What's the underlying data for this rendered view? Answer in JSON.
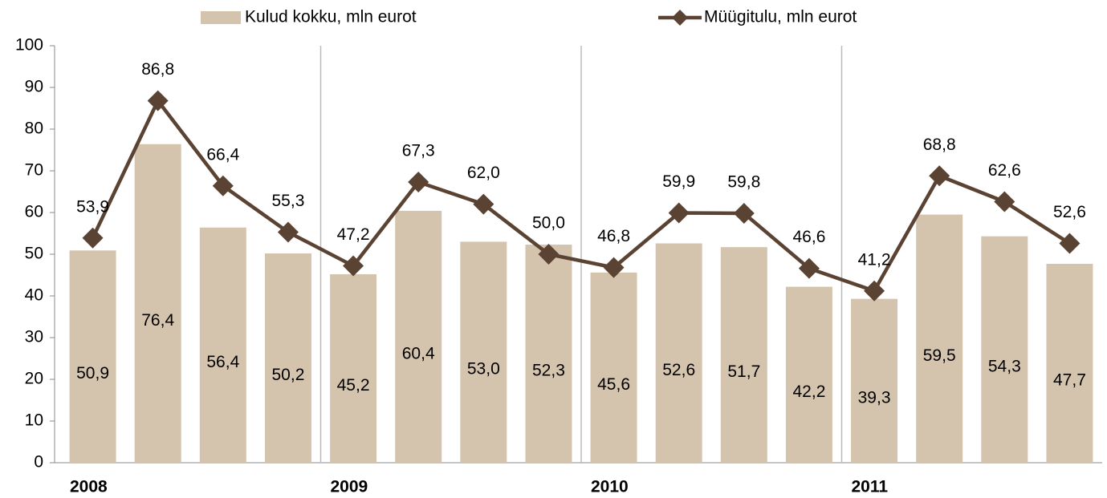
{
  "chart_data": {
    "type": "combo",
    "categories": [
      "2008",
      null,
      null,
      null,
      "2009",
      null,
      null,
      null,
      "2010",
      null,
      null,
      null,
      "2011",
      null,
      null,
      null
    ],
    "series": [
      {
        "name": "Kulud kokku, mln eurot",
        "type": "bar",
        "color": "#d5c4ad",
        "values": [
          50.9,
          76.4,
          56.4,
          50.2,
          45.2,
          60.4,
          53.0,
          52.3,
          45.6,
          52.6,
          51.7,
          42.2,
          39.3,
          59.5,
          54.3,
          47.7
        ],
        "value_labels": [
          "50,9",
          "76,4",
          "56,4",
          "50,2",
          "45,2",
          "60,4",
          "53,0",
          "52,3",
          "45,6",
          "52,6",
          "51,7",
          "42,2",
          "39,3",
          "59,5",
          "54,3",
          "47,7"
        ]
      },
      {
        "name": "Müügitulu, mln eurot",
        "type": "line",
        "color": "#5b4333",
        "values": [
          53.9,
          86.8,
          66.4,
          55.3,
          47.2,
          67.3,
          62.0,
          50.0,
          46.8,
          59.9,
          59.8,
          46.6,
          41.2,
          68.8,
          62.6,
          52.6
        ],
        "value_labels": [
          "53,9",
          "86,8",
          "66,4",
          "55,3",
          "47,2",
          "67,3",
          "62,0",
          "50,0",
          "46,8",
          "59,9",
          "59,8",
          "46,6",
          "41,2",
          "68,8",
          "62,6",
          "52,6"
        ]
      }
    ],
    "ylim": [
      0,
      100
    ],
    "yticks": [
      0,
      10,
      20,
      30,
      40,
      50,
      60,
      70,
      80,
      90,
      100
    ],
    "grid": false,
    "legend": "top"
  }
}
